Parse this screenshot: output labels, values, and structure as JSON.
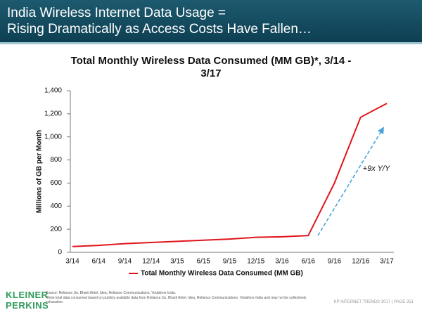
{
  "slide_title": [
    "India Wireless Internet Data Usage =",
    "Rising Dramatically as Access Costs Have Fallen…"
  ],
  "chart_data": {
    "type": "line",
    "title": "Total Monthly Wireless Data Consumed (MM GB)*, 3/14 - 3/17",
    "y_label": "Millions of GB per Month",
    "categories": [
      "3/14",
      "6/14",
      "9/14",
      "12/14",
      "3/15",
      "6/15",
      "9/15",
      "12/15",
      "3/16",
      "6/16",
      "9/16",
      "12/16",
      "3/17"
    ],
    "series": [
      {
        "name": "Total Monthly Wireless Data Consumed (MM GB)",
        "color": "#e0151b",
        "values": [
          50,
          60,
          75,
          85,
          95,
          105,
          115,
          130,
          135,
          145,
          600,
          1170,
          1290
        ]
      }
    ],
    "ylim": [
      0,
      1400
    ],
    "yticks": [
      0,
      200,
      400,
      600,
      800,
      {
        "value": 1000,
        "label": "1,000"
      },
      {
        "value": 1200,
        "label": "1,200"
      },
      {
        "value": 1400,
        "label": "1,400"
      }
    ],
    "annotation": "+9x Y/Y",
    "legend": "bottom"
  },
  "footer": {
    "logo": [
      "KLEINER",
      "PERKINS"
    ],
    "source": "Source: Reliance Jio, Bharti Airtel, Idea, Reliance Communications, Vodafone India.",
    "note": "*Note total data consumed based on publicly available data from Reliance Jio, Bharti Airtel, Idea, Reliance Communications, Vodafone India and may not be collectively exhaustive.",
    "page": "KP INTERNET TRENDS 2017  |  PAGE 251"
  }
}
